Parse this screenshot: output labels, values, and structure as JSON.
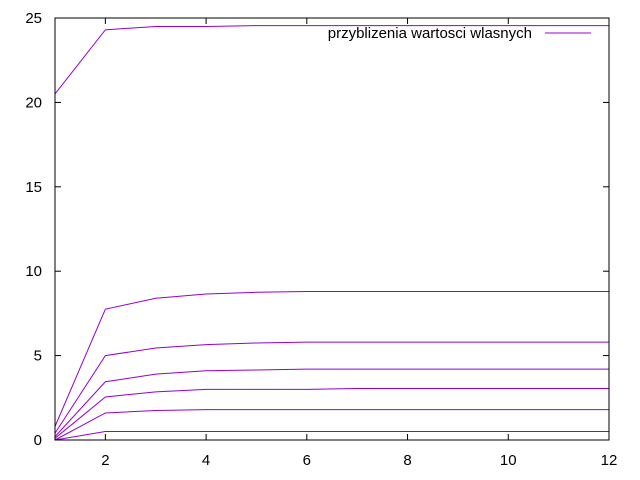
{
  "chart_data": {
    "type": "line",
    "title": "",
    "xlabel": "",
    "ylabel": "",
    "xlim": [
      1,
      12
    ],
    "ylim": [
      0,
      25
    ],
    "xticks": [
      2,
      4,
      6,
      8,
      10,
      12
    ],
    "yticks": [
      0,
      5,
      10,
      15,
      20,
      25
    ],
    "grid": false,
    "legend": {
      "placement": "top-right",
      "label": "przyblizenia wartosci wlasnych"
    },
    "line_color": "#9400d3",
    "x": [
      1,
      2,
      3,
      4,
      5,
      6,
      7,
      8,
      9,
      10,
      11,
      12
    ],
    "series": [
      {
        "values": [
          0.0,
          0.5,
          0.5,
          0.5,
          0.5,
          0.5,
          0.5,
          0.5,
          0.5,
          0.5,
          0.5,
          0.5
        ]
      },
      {
        "values": [
          0.0,
          1.6,
          1.75,
          1.8,
          1.8,
          1.8,
          1.8,
          1.8,
          1.8,
          1.8,
          1.8,
          1.8
        ]
      },
      {
        "values": [
          0.1,
          2.55,
          2.85,
          3.0,
          3.0,
          3.0,
          3.05,
          3.05,
          3.05,
          3.05,
          3.05,
          3.05
        ]
      },
      {
        "values": [
          0.2,
          3.45,
          3.9,
          4.1,
          4.15,
          4.2,
          4.2,
          4.2,
          4.2,
          4.2,
          4.2,
          4.2
        ]
      },
      {
        "values": [
          0.4,
          5.0,
          5.45,
          5.65,
          5.75,
          5.8,
          5.8,
          5.8,
          5.8,
          5.8,
          5.8,
          5.8
        ]
      },
      {
        "values": [
          0.8,
          7.75,
          8.4,
          8.65,
          8.75,
          8.8,
          8.8,
          8.8,
          8.8,
          8.8,
          8.8,
          8.8
        ]
      },
      {
        "values": [
          20.5,
          24.3,
          24.5,
          24.5,
          24.55,
          24.55,
          24.55,
          24.55,
          24.55,
          24.55,
          24.55,
          24.55
        ]
      }
    ]
  }
}
